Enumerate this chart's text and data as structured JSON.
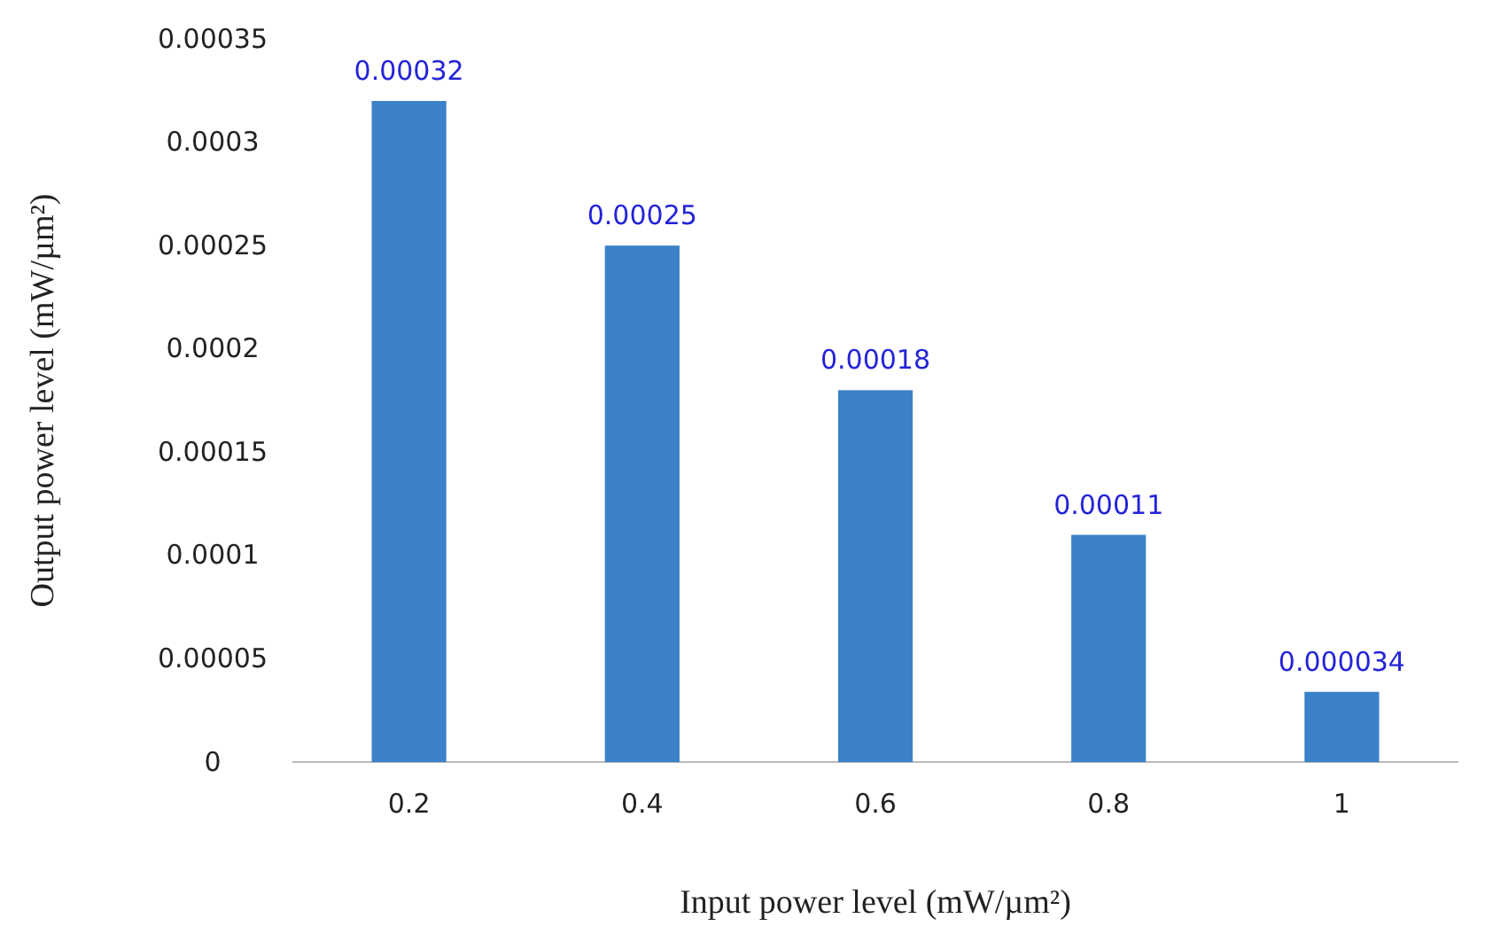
{
  "chart_data": {
    "type": "bar",
    "xlabel": "Input power level (mW/µm²)",
    "ylabel": "Output power level (mW/µm²)",
    "categories": [
      "0.2",
      "0.4",
      "0.6",
      "0.8",
      "1"
    ],
    "values": [
      0.00032,
      0.00025,
      0.00018,
      0.00011,
      3.4e-05
    ],
    "value_labels": [
      "0.00032",
      "0.00025",
      "0.00018",
      "0.00011",
      "0.000034"
    ],
    "color": "#3b82c8",
    "ylim": [
      0,
      0.00035
    ],
    "yticks": [
      0,
      {
        "value": 5e-05,
        "label": "0.00005"
      },
      0.0001,
      0.00015,
      0.0002,
      0.00025,
      0.0003,
      0.00035
    ],
    "grid": false
  }
}
